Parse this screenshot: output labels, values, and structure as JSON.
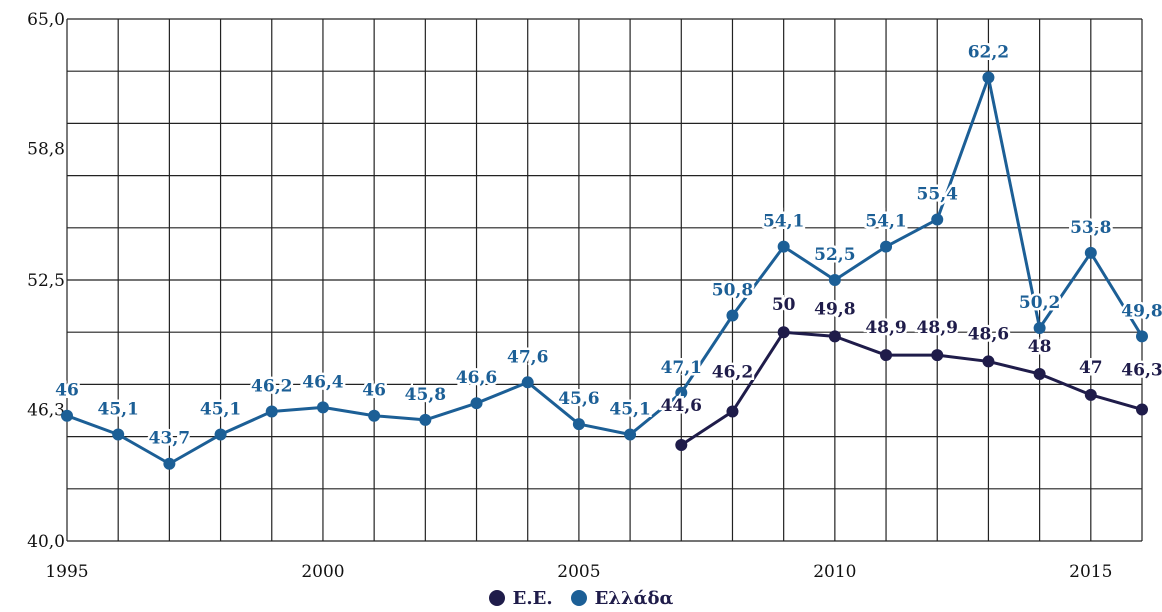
{
  "chart_data": {
    "type": "line",
    "x": [
      1995,
      1996,
      1997,
      1998,
      1999,
      2000,
      2001,
      2002,
      2003,
      2004,
      2005,
      2006,
      2007,
      2008,
      2009,
      2010,
      2011,
      2012,
      2013,
      2014,
      2015,
      2016
    ],
    "xlim": [
      1995,
      2016
    ],
    "x_ticks": [
      1995,
      2000,
      2005,
      2010,
      2015
    ],
    "x_tick_labels": [
      "1995",
      "2000",
      "2005",
      "2010",
      "2015"
    ],
    "ylim": [
      40.0,
      65.0
    ],
    "y_ticks": [
      40.0,
      46.3,
      52.5,
      58.8,
      65.0
    ],
    "y_tick_labels": [
      "40,0",
      "46,3",
      "52,5",
      "58,8",
      "65,0"
    ],
    "grid": true,
    "series": [
      {
        "name": "Ε.Ε.",
        "color": "#1f1c4a",
        "x": [
          2007,
          2008,
          2009,
          2010,
          2011,
          2012,
          2013,
          2014,
          2015,
          2016
        ],
        "values": [
          44.6,
          46.2,
          50.0,
          49.8,
          48.9,
          48.9,
          48.6,
          48.0,
          47.0,
          46.3
        ],
        "labels": [
          "44,6",
          "46,2",
          "50",
          "49,8",
          "48,9",
          "48,9",
          "48,6",
          "48",
          "47",
          "46,3"
        ]
      },
      {
        "name": "Ελλάδα",
        "color": "#1c5f96",
        "x": [
          1995,
          1996,
          1997,
          1998,
          1999,
          2000,
          2001,
          2002,
          2003,
          2004,
          2005,
          2006,
          2007,
          2008,
          2009,
          2010,
          2011,
          2012,
          2013,
          2014,
          2015,
          2016
        ],
        "values": [
          46.0,
          45.1,
          43.7,
          45.1,
          46.2,
          46.4,
          46.0,
          45.8,
          46.6,
          47.6,
          45.6,
          45.1,
          47.1,
          50.8,
          54.1,
          52.5,
          54.1,
          55.4,
          62.2,
          50.2,
          53.8,
          49.8
        ],
        "labels": [
          "46",
          "45,1",
          "43,7",
          "45,1",
          "46,2",
          "46,4",
          "46",
          "45,8",
          "46,6",
          "47,6",
          "45,6",
          "45,1",
          "47,1",
          "50,8",
          "54,1",
          "52,5",
          "54,1",
          "55,4",
          "62,2",
          "50,2",
          "53,8",
          "49,8"
        ]
      }
    ],
    "legend_position": "bottom-center"
  }
}
